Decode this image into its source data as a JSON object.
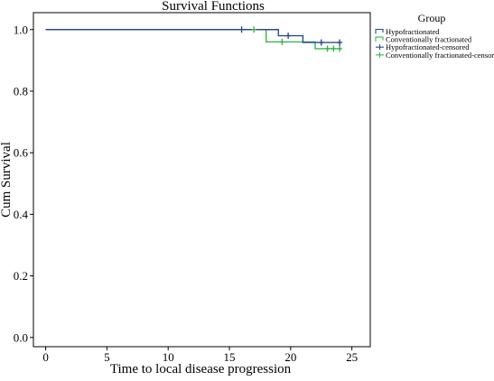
{
  "chart_data": {
    "type": "line",
    "title": "Survival Functions",
    "xlabel": "Time to local disease progression",
    "ylabel": "Cum Survival",
    "xlim": [
      -1,
      26.5
    ],
    "ylim": [
      -0.03,
      1.055
    ],
    "x_ticks": [
      0,
      5,
      10,
      15,
      20,
      25
    ],
    "y_ticks": [
      0.0,
      0.2,
      0.4,
      0.6,
      0.8,
      1.0
    ],
    "y_tick_labels": [
      "0.0",
      "0.2",
      "0.4",
      "0.6",
      "0.8",
      "1.0"
    ],
    "grid": false,
    "legend": {
      "title": "Group",
      "position": "right",
      "entries": [
        "Hypofractionated",
        "Conventionally fractionated",
        "Hypofractionated-censored",
        "Conventionally fractionated-censored"
      ]
    },
    "series": [
      {
        "name": "Hypofractionated",
        "kind": "step",
        "color": "#2c4a8f",
        "x": [
          0,
          19,
          21,
          24.2
        ],
        "y": [
          1.0,
          0.98,
          0.958,
          0.958
        ],
        "censored": {
          "x": [
            16,
            19.8,
            22.5,
            24
          ],
          "y": [
            1.0,
            0.98,
            0.958,
            0.958
          ]
        }
      },
      {
        "name": "Conventionally fractionated",
        "kind": "step",
        "color": "#3ab54a",
        "x": [
          0,
          18,
          22,
          24.2
        ],
        "y": [
          1.0,
          0.96,
          0.938,
          0.938
        ],
        "censored": {
          "x": [
            17,
            19.3,
            23,
            23.5,
            24
          ],
          "y": [
            1.0,
            0.96,
            0.938,
            0.938,
            0.938
          ]
        }
      }
    ]
  }
}
